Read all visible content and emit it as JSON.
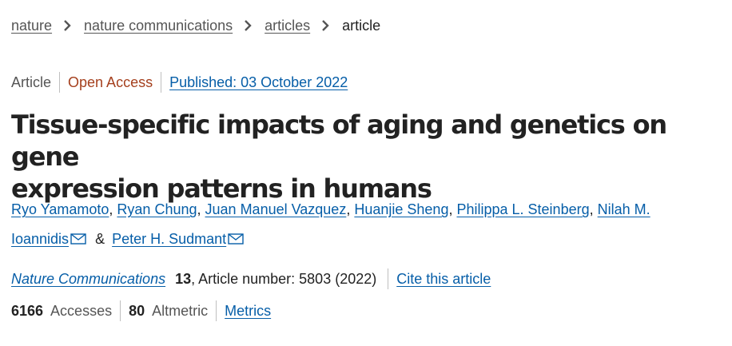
{
  "breadcrumb": {
    "items": [
      {
        "label": "nature"
      },
      {
        "label": "nature communications"
      },
      {
        "label": "articles"
      }
    ],
    "current": "article"
  },
  "meta": {
    "article_type": "Article",
    "access": "Open Access",
    "published": "Published: 03 October 2022"
  },
  "title_line1": "Tissue-specific impacts of aging and genetics on gene",
  "title_line2": "expression patterns in humans",
  "authors": {
    "list": [
      "Ryo Yamamoto",
      "Ryan Chung",
      "Juan Manuel Vazquez",
      "Huanjie Sheng",
      "Philippa L. Steinberg",
      "Nilah M.",
      "Ioannidis",
      "Peter H. Sudmant"
    ],
    "separator": ",",
    "conjunction": "&"
  },
  "journal": {
    "name": "Nature Communications",
    "volume": "13",
    "article_number_text": ", Article number: 5803 (2022)",
    "cite_label": "Cite this article"
  },
  "metrics": {
    "accesses_value": "6166",
    "accesses_label": "Accesses",
    "altmetric_value": "80",
    "altmetric_label": "Altmetric",
    "metrics_label": "Metrics"
  },
  "colors": {
    "link_blue": "#065ea8",
    "open_access": "#a5401e",
    "text": "#222222",
    "muted": "#555555"
  },
  "icons": {
    "breadcrumb_separator": "chevron-right-icon",
    "author_contact": "mail-icon"
  }
}
